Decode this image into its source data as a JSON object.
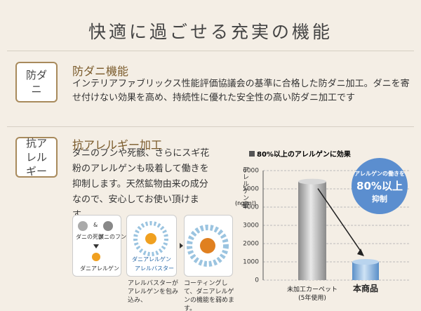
{
  "header": {
    "title": "快適に過ごせる充実の機能"
  },
  "features": [
    {
      "badge": "防ダニ",
      "heading": "防ダニ機能",
      "body": "インテリアファブリックス性能評価協議会の基準に合格した防ダニ加工。ダニを寄せ付けない効果を高め、持続性に優れた安全性の高い防ダニ加工です"
    },
    {
      "badge": "抗アレルギー",
      "heading": "抗アレルギー加工",
      "body": "ダニのフンや死骸、さらにスギ花粉のアレルゲンも吸着して働きを抑制します。天然鉱物由来の成分なので、安心してお使い頂けます。"
    }
  ],
  "diagram": {
    "step1": {
      "dead": "ダニの死骸",
      "and": "&",
      "feces": "ダニのフン",
      "result": "ダニアレルゲン"
    },
    "step2": {
      "allergen": "ダニアレルゲン",
      "agent": "アレルバスター"
    },
    "captions": [
      "アレルバスターがアレルゲンを包み込み、",
      "コーティングして、ダニアレルゲンの機能を弱めます。"
    ]
  },
  "chart_data": {
    "type": "bar",
    "title": "80%以上のアレルゲンに効果",
    "y_label": "アレルゲン量",
    "y_unit": "(ng/m²)",
    "categories": [
      "未加工カーペット",
      "本商品"
    ],
    "category_note": "(5年使用)",
    "values": [
      5400,
      1000
    ],
    "color": "#b5b5b5",
    "ylim": [
      0,
      6000
    ],
    "yticks": [
      0,
      1000,
      2000,
      3000,
      4000,
      5000,
      6000
    ],
    "grid": true,
    "callout": [
      "アレルゲンの働きを",
      "80%以上",
      "抑制"
    ]
  }
}
